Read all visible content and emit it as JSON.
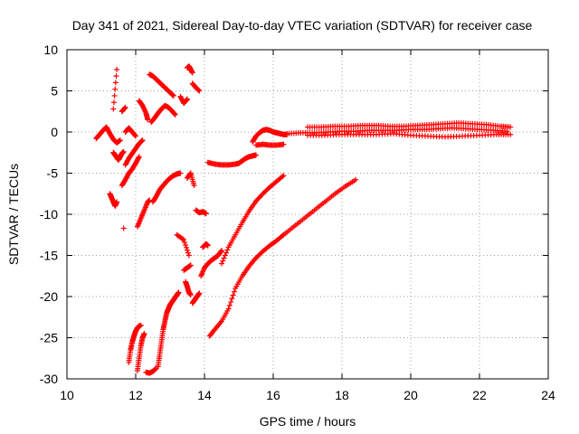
{
  "chart_data": {
    "type": "scatter",
    "title": "Day 341 of 2021, Sidereal Day-to-day VTEC variation (SDTVAR) for receiver case",
    "xlabel": "GPS time / hours",
    "ylabel": "SDTVAR / TECUs",
    "xlim": [
      10,
      24
    ],
    "ylim": [
      -30,
      10
    ],
    "xticks": [
      10,
      12,
      14,
      16,
      18,
      20,
      22,
      24
    ],
    "yticks": [
      -30,
      -25,
      -20,
      -15,
      -10,
      -5,
      0,
      5,
      10
    ],
    "grid": true,
    "marker": "plus",
    "color": "#ff0000",
    "series": [
      {
        "name": "seg1",
        "x": [
          10.85,
          10.95,
          11.05,
          11.15,
          11.25,
          11.35,
          11.45,
          11.55
        ],
        "y": [
          -0.8,
          -0.3,
          0.2,
          0.6,
          -0.2,
          -0.9,
          -1.3,
          -1.0
        ]
      },
      {
        "name": "seg2",
        "x": [
          11.35,
          11.4,
          11.45,
          11.5,
          11.55,
          11.6,
          11.65
        ],
        "y": [
          -2.5,
          -2.8,
          -3.1,
          -3.4,
          -3.0,
          -2.6,
          -2.4
        ]
      },
      {
        "name": "seg3",
        "x": [
          11.25,
          11.3,
          11.35,
          11.4,
          11.45
        ],
        "y": [
          -7.5,
          -8.0,
          -8.5,
          -9.0,
          -8.5
        ]
      },
      {
        "name": "seg4",
        "x": [
          11.35,
          11.45
        ],
        "y": [
          2.8,
          7.6
        ]
      },
      {
        "name": "seg5",
        "x": [
          11.6,
          11.7
        ],
        "y": [
          2.5,
          3.0
        ]
      },
      {
        "name": "seg6",
        "x": [
          11.65
        ],
        "y": [
          -11.7
        ]
      },
      {
        "name": "seg7",
        "x": [
          11.8,
          11.85,
          11.9,
          11.95,
          12.0,
          12.05,
          12.1,
          12.15
        ],
        "y": [
          -28.0,
          -26.5,
          -25.5,
          -24.8,
          -24.2,
          -23.8,
          -23.6,
          -23.5
        ]
      },
      {
        "name": "seg8",
        "x": [
          11.6,
          11.7,
          11.8,
          11.9,
          12.0,
          12.1
        ],
        "y": [
          -6.5,
          -5.8,
          -5.0,
          -4.5,
          -3.8,
          -3.0
        ]
      },
      {
        "name": "seg9",
        "x": [
          11.7,
          11.8,
          11.9,
          12.0,
          12.1,
          12.2
        ],
        "y": [
          -4.0,
          -3.2,
          -2.6,
          -2.0,
          -1.4,
          -1.0
        ]
      },
      {
        "name": "seg10",
        "x": [
          11.7,
          11.8,
          11.9,
          12.0
        ],
        "y": [
          0.0,
          0.5,
          0.0,
          -0.5
        ]
      },
      {
        "name": "seg11",
        "x": [
          12.05,
          12.1,
          12.15,
          12.2,
          12.25
        ],
        "y": [
          -29.0,
          -27.5,
          -26.0,
          -25.0,
          -24.5
        ]
      },
      {
        "name": "seg12",
        "x": [
          12.05,
          12.15,
          12.25,
          12.35,
          12.4
        ],
        "y": [
          -11.5,
          -10.5,
          -9.5,
          -8.5,
          -8.3
        ]
      },
      {
        "name": "seg13",
        "x": [
          12.1,
          12.2,
          12.3,
          12.35
        ],
        "y": [
          3.8,
          3.2,
          2.3,
          1.5
        ]
      },
      {
        "name": "seg14",
        "x": [
          12.3,
          12.4,
          12.5,
          12.6
        ],
        "y": [
          -29.2,
          -29.3,
          -29.1,
          -28.7
        ]
      },
      {
        "name": "seg15",
        "x": [
          12.5,
          12.6,
          12.7,
          12.8,
          12.9,
          13.0,
          13.1,
          13.2,
          13.3
        ],
        "y": [
          -8.5,
          -7.8,
          -7.0,
          -6.5,
          -6.0,
          -5.6,
          -5.3,
          -5.1,
          -5.0
        ]
      },
      {
        "name": "seg16",
        "x": [
          12.4,
          12.5,
          12.6,
          12.7,
          12.8,
          12.9,
          13.0,
          13.1
        ],
        "y": [
          7.0,
          6.8,
          6.4,
          6.0,
          5.6,
          5.2,
          4.8,
          4.4
        ]
      },
      {
        "name": "seg17",
        "x": [
          12.45,
          12.55,
          12.65,
          12.75,
          12.85,
          12.95,
          13.05,
          13.15
        ],
        "y": [
          1.2,
          1.7,
          2.3,
          2.8,
          3.2,
          3.0,
          2.6,
          2.1
        ]
      },
      {
        "name": "seg18",
        "x": [
          12.65,
          12.7,
          12.75,
          12.8,
          12.85,
          12.9,
          12.95,
          13.0,
          13.05,
          13.1,
          13.15,
          13.2,
          13.25
        ],
        "y": [
          -28.5,
          -27.0,
          -25.5,
          -24.0,
          -23.0,
          -22.0,
          -21.5,
          -21.0,
          -20.7,
          -20.4,
          -20.1,
          -19.8,
          -19.5
        ]
      },
      {
        "name": "seg19",
        "x": [
          13.3,
          13.4,
          13.5
        ],
        "y": [
          4.3,
          3.5,
          4.0
        ]
      },
      {
        "name": "seg20",
        "x": [
          13.2,
          13.4,
          13.55
        ],
        "y": [
          -12.5,
          -13.1,
          -15.0
        ]
      },
      {
        "name": "seg21",
        "x": [
          13.4,
          13.5,
          13.6
        ],
        "y": [
          -16.8,
          -16.5,
          -16.2
        ]
      },
      {
        "name": "seg22",
        "x": [
          13.5,
          13.6,
          13.7
        ],
        "y": [
          -5.6,
          -5.0,
          -6.5
        ]
      },
      {
        "name": "seg23",
        "x": [
          13.45,
          13.5,
          13.55,
          13.6
        ],
        "y": [
          -18.2,
          -18.8,
          -19.5,
          -19.8
        ]
      },
      {
        "name": "seg24",
        "x": [
          13.5,
          13.55,
          13.6,
          13.65
        ],
        "y": [
          7.8,
          8.0,
          7.6,
          7.2
        ]
      },
      {
        "name": "seg25",
        "x": [
          13.65,
          13.75,
          13.85
        ],
        "y": [
          5.9,
          5.4,
          5.0
        ]
      },
      {
        "name": "seg26",
        "x": [
          13.65,
          13.7,
          13.75,
          13.8,
          13.85
        ],
        "y": [
          -20.8,
          -20.5,
          -20.2,
          -19.9,
          -19.6
        ]
      },
      {
        "name": "seg27",
        "x": [
          13.75,
          13.85,
          13.95,
          14.05
        ],
        "y": [
          -9.5,
          -9.8,
          -9.7,
          -9.9
        ]
      },
      {
        "name": "seg28",
        "x": [
          13.9,
          14.0,
          14.1,
          14.2,
          14.3,
          14.4,
          14.5
        ],
        "y": [
          -17.5,
          -16.5,
          -16.0,
          -15.6,
          -15.3,
          -15.0,
          -14.4
        ]
      },
      {
        "name": "seg29",
        "x": [
          13.95,
          14.05,
          14.1
        ],
        "y": [
          -14.0,
          -13.6,
          -13.8
        ]
      },
      {
        "name": "seg30",
        "x": [
          14.1,
          14.3,
          14.5,
          14.7,
          14.9,
          15.0,
          15.1,
          15.2,
          15.3,
          15.4,
          15.5
        ],
        "y": [
          -3.7,
          -3.9,
          -4.0,
          -4.0,
          -3.9,
          -3.8,
          -3.5,
          -3.2,
          -3.0,
          -2.9,
          -2.8
        ]
      },
      {
        "name": "seg31",
        "x": [
          14.15,
          14.3,
          14.5,
          14.7,
          14.9,
          15.1,
          15.3,
          15.5,
          15.7,
          15.9,
          16.1,
          16.3
        ],
        "y": [
          -24.8,
          -24.0,
          -23.0,
          -21.5,
          -19.0,
          -17.5,
          -16.3,
          -15.3,
          -14.5,
          -13.8,
          -13.2,
          -12.5
        ]
      },
      {
        "name": "seg32",
        "x": [
          16.3,
          16.6,
          16.9,
          17.2,
          17.5,
          17.8,
          18.1,
          18.4
        ],
        "y": [
          -12.5,
          -11.5,
          -10.5,
          -9.5,
          -8.5,
          -7.5,
          -6.6,
          -5.8
        ]
      },
      {
        "name": "seg33",
        "x": [
          14.5,
          14.7,
          14.9,
          15.1,
          15.3,
          15.5,
          15.7,
          15.9,
          16.1,
          16.3
        ],
        "y": [
          -16.0,
          -14.0,
          -12.5,
          -11.0,
          -9.6,
          -8.4,
          -7.5,
          -6.7,
          -6.0,
          -5.3
        ]
      },
      {
        "name": "seg34",
        "x": [
          15.4,
          15.5,
          15.6,
          15.7,
          15.8,
          15.9,
          16.0,
          16.1,
          16.2,
          16.3,
          16.4
        ],
        "y": [
          -1.2,
          -0.5,
          -0.1,
          0.2,
          0.3,
          0.2,
          0.0,
          -0.1,
          -0.2,
          -0.3,
          -0.3
        ]
      },
      {
        "name": "seg35",
        "x": [
          15.5,
          15.7,
          15.9,
          16.1,
          16.3
        ],
        "y": [
          -1.6,
          -1.5,
          -1.6,
          -1.6,
          -1.5
        ]
      },
      {
        "name": "seg36",
        "x": [
          16.4,
          16.8,
          17.2,
          17.6,
          18.0,
          18.4,
          18.8,
          19.2,
          19.6,
          20.0,
          20.4,
          20.8,
          21.2,
          21.6,
          22.0,
          22.4,
          22.8
        ],
        "y": [
          -0.2,
          -0.1,
          -0.1,
          0.0,
          0.1,
          0.1,
          0.2,
          0.2,
          0.2,
          0.3,
          0.3,
          0.4,
          0.5,
          0.4,
          0.3,
          0.2,
          0.1
        ]
      },
      {
        "name": "seg37",
        "x": [
          17.0,
          17.4,
          17.8,
          18.2,
          18.6,
          19.0,
          19.4,
          19.8,
          20.2,
          20.6,
          21.0,
          21.4,
          21.8,
          22.2,
          22.6,
          22.9
        ],
        "y": [
          0.6,
          0.6,
          0.7,
          0.7,
          0.8,
          0.8,
          0.7,
          0.7,
          0.8,
          0.9,
          1.0,
          1.1,
          1.0,
          0.9,
          0.7,
          0.6
        ]
      },
      {
        "name": "seg38",
        "x": [
          17.0,
          17.5,
          18.0,
          18.5,
          19.0,
          19.5,
          20.0,
          20.5,
          21.0,
          21.5,
          22.0,
          22.5,
          22.9
        ],
        "y": [
          -0.4,
          -0.4,
          -0.3,
          -0.3,
          -0.3,
          -0.2,
          -0.4,
          -0.5,
          -0.6,
          -0.5,
          -0.4,
          -0.3,
          -0.3
        ]
      }
    ]
  }
}
